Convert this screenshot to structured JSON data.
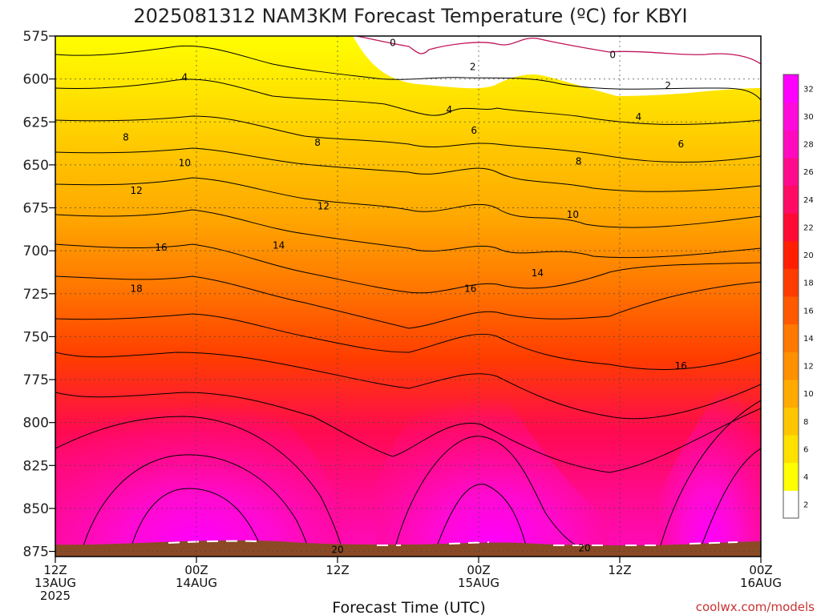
{
  "title": "2025081312 NAM3KM Forecast Temperature (ºC) for KBYI",
  "credit": "coolwx.com/models",
  "chart_data": {
    "type": "heatmap",
    "title": "2025081312 NAM3KM Forecast Temperature (ºC) for KBYI",
    "xlabel": "Forecast Time (UTC)",
    "ylabel": "",
    "x_range_hours": [
      0,
      60
    ],
    "y_range_hpa": [
      575,
      878
    ],
    "y_ticks": [
      575,
      600,
      625,
      650,
      675,
      700,
      725,
      750,
      775,
      800,
      825,
      850,
      875
    ],
    "x_ticks": [
      {
        "hour": 0,
        "lines": [
          "12Z",
          "13AUG",
          "2025"
        ]
      },
      {
        "hour": 12,
        "lines": [
          "00Z",
          "14AUG"
        ]
      },
      {
        "hour": 24,
        "lines": [
          "12Z"
        ]
      },
      {
        "hour": 36,
        "lines": [
          "00Z",
          "15AUG"
        ]
      },
      {
        "hour": 48,
        "lines": [
          "12Z"
        ]
      },
      {
        "hour": 60,
        "lines": [
          "00Z",
          "16AUG"
        ]
      }
    ],
    "grid": true,
    "colorbar": {
      "labels": [
        2,
        4,
        6,
        8,
        10,
        12,
        14,
        16,
        18,
        20,
        22,
        24,
        26,
        28,
        30,
        32
      ],
      "colors": [
        "#ffffff",
        "#ffff00",
        "#ffe100",
        "#ffc600",
        "#ffaa00",
        "#ff9000",
        "#ff7800",
        "#ff5a00",
        "#ff3c00",
        "#ff1e00",
        "#ff0a32",
        "#ff0a64",
        "#ff0a8c",
        "#ff0abe",
        "#ff0adc",
        "#ff00ff"
      ]
    },
    "contour_labels": [
      {
        "text": "0",
        "hour": 28.7,
        "hpa": 579
      },
      {
        "text": "0",
        "hour": 47.4,
        "hpa": 586
      },
      {
        "text": "2",
        "hour": 35.5,
        "hpa": 593
      },
      {
        "text": "2",
        "hour": 52.1,
        "hpa": 604
      },
      {
        "text": "4",
        "hour": 11.0,
        "hpa": 599
      },
      {
        "text": "4",
        "hour": 33.5,
        "hpa": 618
      },
      {
        "text": "4",
        "hour": 49.6,
        "hpa": 622
      },
      {
        "text": "6",
        "hour": 35.6,
        "hpa": 630
      },
      {
        "text": "6",
        "hour": 53.2,
        "hpa": 638
      },
      {
        "text": "8",
        "hour": 6.0,
        "hpa": 634
      },
      {
        "text": "8",
        "hour": 22.3,
        "hpa": 637
      },
      {
        "text": "8",
        "hour": 44.5,
        "hpa": 648
      },
      {
        "text": "10",
        "hour": 11.0,
        "hpa": 649
      },
      {
        "text": "10",
        "hour": 44.0,
        "hpa": 679
      },
      {
        "text": "12",
        "hour": 6.9,
        "hpa": 665
      },
      {
        "text": "12",
        "hour": 22.8,
        "hpa": 674
      },
      {
        "text": "14",
        "hour": 19.0,
        "hpa": 697
      },
      {
        "text": "14",
        "hour": 41.0,
        "hpa": 713
      },
      {
        "text": "16",
        "hour": 9.0,
        "hpa": 698
      },
      {
        "text": "16",
        "hour": 35.3,
        "hpa": 722
      },
      {
        "text": "16",
        "hour": 53.2,
        "hpa": 767
      },
      {
        "text": "18",
        "hour": 6.9,
        "hpa": 722
      },
      {
        "text": "20",
        "hour": 24.0,
        "hpa": 874
      },
      {
        "text": "20",
        "hour": 45.0,
        "hpa": 873
      }
    ]
  }
}
